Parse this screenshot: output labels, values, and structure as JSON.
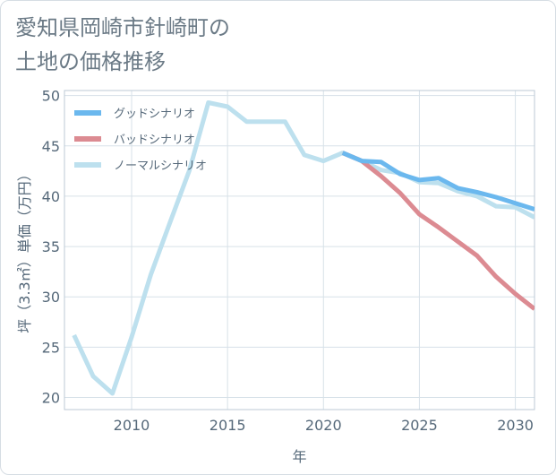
{
  "title_lines": [
    "愛知県岡崎市針崎町の",
    "土地の価格推移"
  ],
  "chart_data": {
    "type": "line",
    "title": "愛知県岡崎市針崎町の土地の価格推移",
    "xlabel": "年",
    "ylabel": "坪（3.3㎡）単価（万円）",
    "xlim": [
      2006.5,
      2031
    ],
    "ylim": [
      18.8,
      50.5
    ],
    "xticks": [
      2010,
      2015,
      2020,
      2025,
      2030
    ],
    "yticks": [
      20,
      25,
      30,
      35,
      40,
      45,
      50
    ],
    "grid": true,
    "legend_position": "top-left",
    "series": [
      {
        "name": "グッドシナリオ",
        "color": "#6bb8ee",
        "x": [
          2021,
          2022,
          2023,
          2024,
          2025,
          2026,
          2027,
          2028,
          2029,
          2030,
          2031
        ],
        "values": [
          44.3,
          43.5,
          43.4,
          42.2,
          41.6,
          41.8,
          40.8,
          40.4,
          39.9,
          39.3,
          38.7
        ]
      },
      {
        "name": "バッドシナリオ",
        "color": "#dc8b92",
        "x": [
          2021,
          2022,
          2023,
          2024,
          2025,
          2026,
          2027,
          2028,
          2029,
          2030,
          2031
        ],
        "values": [
          44.3,
          43.5,
          42.0,
          40.3,
          38.2,
          36.9,
          35.5,
          34.1,
          32.0,
          30.3,
          28.8
        ]
      },
      {
        "name": "ノーマルシナリオ",
        "color": "#bde0ee",
        "x": [
          2007,
          2008,
          2009,
          2010,
          2011,
          2012,
          2013,
          2014,
          2015,
          2016,
          2017,
          2018,
          2019,
          2020,
          2021,
          2022,
          2023,
          2024,
          2025,
          2026,
          2027,
          2028,
          2029,
          2030,
          2031
        ],
        "values": [
          26.2,
          22.1,
          20.4,
          26.0,
          32.2,
          37.4,
          42.5,
          49.3,
          48.9,
          47.4,
          47.4,
          47.4,
          44.1,
          43.5,
          44.3,
          43.5,
          42.6,
          42.3,
          41.4,
          41.3,
          40.5,
          40.0,
          39.0,
          38.9,
          37.9
        ]
      }
    ]
  }
}
